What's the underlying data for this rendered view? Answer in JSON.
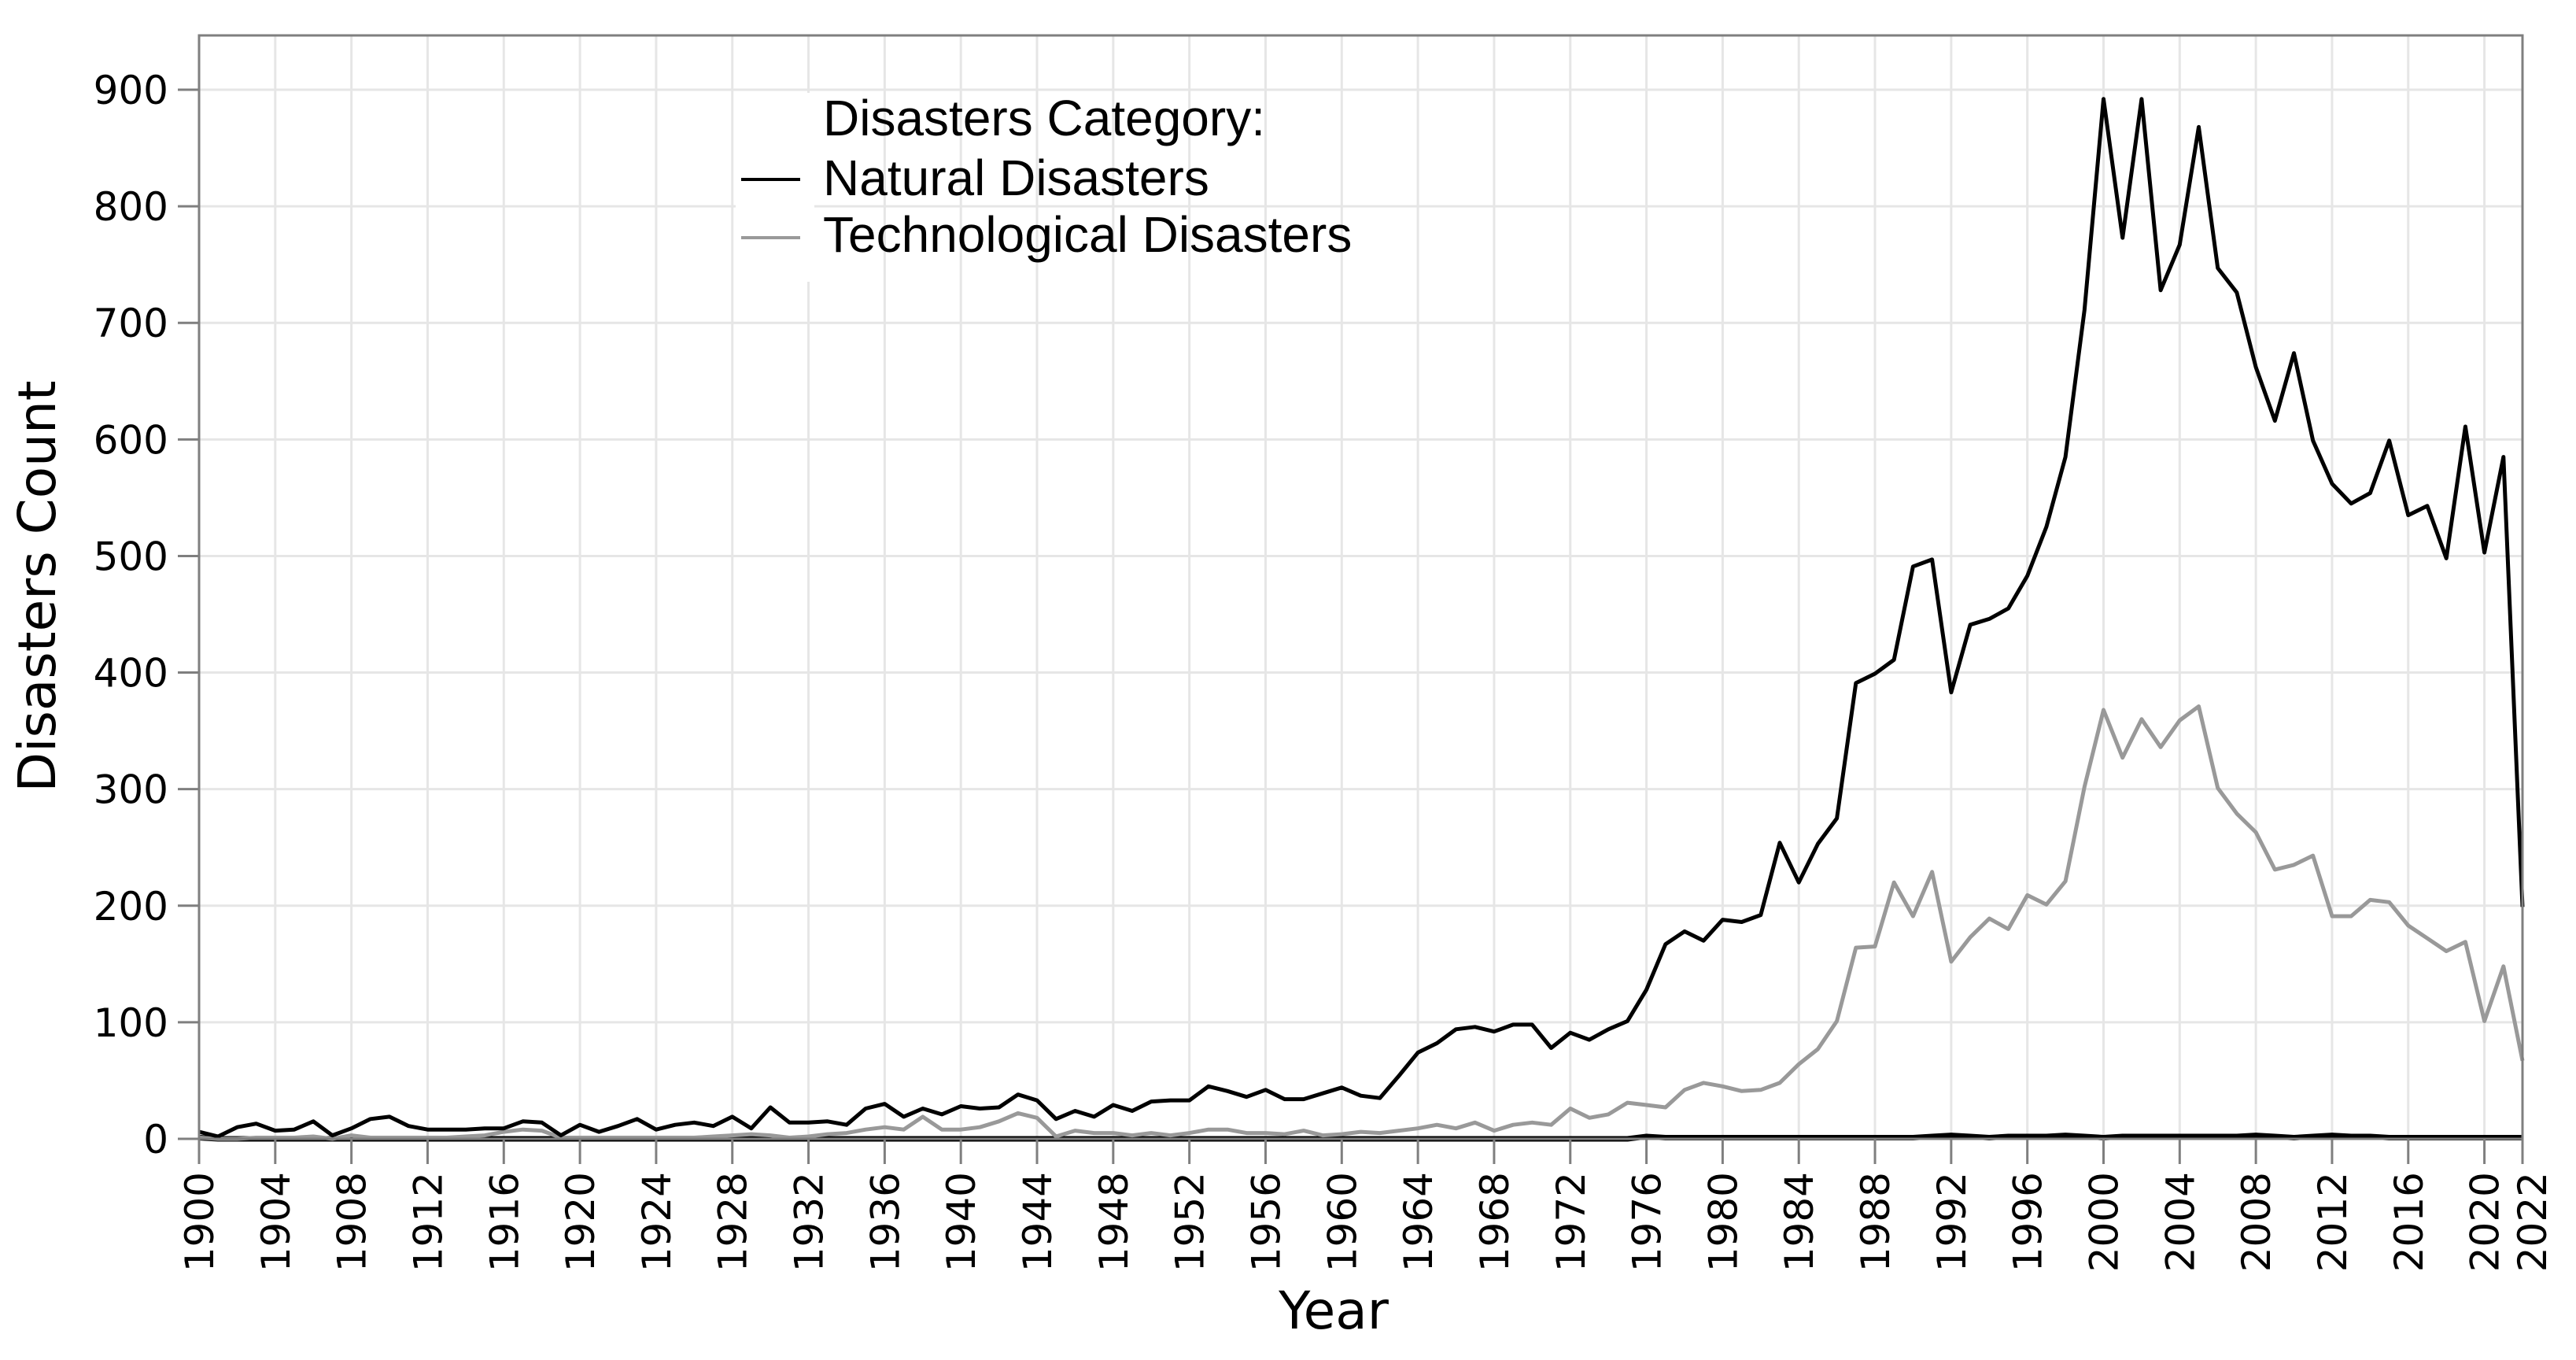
{
  "chart_data": {
    "type": "line",
    "title": "",
    "xlabel": "Year",
    "ylabel": "Disasters Count",
    "xlim": [
      1900,
      2022
    ],
    "ylim": [
      0,
      950
    ],
    "grid": true,
    "legend": {
      "title": "Disasters Category:",
      "placement": "top-center-left",
      "entries": [
        "Natural Disasters",
        "Technological Disasters"
      ]
    },
    "x_ticks": [
      "1900",
      "1904",
      "1908",
      "1912",
      "1916",
      "1920",
      "1924",
      "1928",
      "1932",
      "1936",
      "1940",
      "1944",
      "1948",
      "1952",
      "1956",
      "1960",
      "1964",
      "1968",
      "1972",
      "1976",
      "1980",
      "1984",
      "1988",
      "1992",
      "1996",
      "2000",
      "2004",
      "2008",
      "2012",
      "2016",
      "2020",
      "2022"
    ],
    "y_ticks": [
      "0",
      "100",
      "200",
      "300",
      "400",
      "500",
      "600",
      "700",
      "800",
      "900"
    ],
    "x_start": 1900,
    "series": [
      {
        "name": "Natural Disasters",
        "color": "#000000",
        "values": [
          6,
          2,
          10,
          13,
          7,
          8,
          15,
          3,
          9,
          17,
          19,
          11,
          8,
          8,
          8,
          9,
          9,
          15,
          14,
          3,
          12,
          6,
          11,
          17,
          8,
          12,
          14,
          11,
          19,
          9,
          27,
          14,
          14,
          15,
          12,
          26,
          30,
          19,
          26,
          21,
          28,
          26,
          27,
          38,
          33,
          17,
          24,
          19,
          29,
          24,
          32,
          33,
          33,
          45,
          41,
          36,
          42,
          34,
          34,
          39,
          44,
          37,
          35,
          54,
          74,
          82,
          94,
          96,
          92,
          98,
          98,
          78,
          91,
          85,
          94,
          101,
          128,
          167,
          178,
          170,
          188,
          186,
          192,
          254,
          220,
          253,
          275,
          391,
          399,
          411,
          491,
          497,
          383,
          441,
          446,
          455,
          483,
          525,
          585,
          711,
          892,
          773,
          892,
          728,
          767,
          868,
          747,
          726,
          662,
          616,
          674,
          599,
          562,
          545,
          554,
          599,
          535,
          543,
          498,
          611,
          503,
          585,
          199
        ]
      },
      {
        "name": "Technological Disasters",
        "color": "#999999",
        "values": [
          1,
          0,
          0,
          1,
          1,
          1,
          2,
          0,
          3,
          1,
          1,
          1,
          1,
          1,
          2,
          3,
          6,
          8,
          7,
          1,
          1,
          1,
          1,
          1,
          1,
          1,
          1,
          2,
          3,
          4,
          3,
          1,
          2,
          4,
          5,
          8,
          10,
          8,
          19,
          8,
          8,
          10,
          15,
          22,
          18,
          2,
          7,
          5,
          5,
          3,
          5,
          3,
          5,
          8,
          8,
          5,
          5,
          4,
          7,
          3,
          4,
          6,
          5,
          7,
          9,
          12,
          9,
          14,
          7,
          12,
          14,
          12,
          26,
          18,
          21,
          31,
          29,
          27,
          42,
          48,
          45,
          41,
          42,
          48,
          64,
          77,
          101,
          164,
          165,
          220,
          191,
          229,
          152,
          173,
          189,
          180,
          209,
          201,
          221,
          302,
          368,
          327,
          360,
          336,
          359,
          371,
          301,
          279,
          263,
          231,
          235,
          243,
          191,
          191,
          205,
          203,
          183,
          172,
          161,
          169,
          101,
          148,
          67
        ]
      },
      {
        "name": "",
        "color": "#000000",
        "values": [
          1,
          0,
          0,
          0,
          0,
          0,
          0,
          0,
          0,
          0,
          0,
          0,
          0,
          0,
          0,
          0,
          0,
          0,
          0,
          0,
          0,
          0,
          0,
          0,
          0,
          0,
          0,
          0,
          0,
          0,
          0,
          0,
          0,
          0,
          0,
          0,
          0,
          0,
          0,
          0,
          0,
          0,
          0,
          0,
          0,
          0,
          0,
          0,
          0,
          0,
          0,
          0,
          0,
          0,
          0,
          0,
          0,
          0,
          0,
          0,
          0,
          0,
          0,
          0,
          0,
          0,
          0,
          0,
          0,
          0,
          0,
          0,
          0,
          0,
          0,
          0,
          2,
          1,
          1,
          1,
          1,
          1,
          1,
          1,
          1,
          1,
          1,
          1,
          1,
          1,
          1,
          2,
          3,
          2,
          1,
          2,
          2,
          2,
          3,
          2,
          1,
          2,
          2,
          2,
          2,
          2,
          2,
          2,
          3,
          2,
          1,
          2,
          3,
          2,
          2,
          1,
          1,
          1,
          1,
          1,
          1,
          1,
          1
        ]
      }
    ]
  }
}
